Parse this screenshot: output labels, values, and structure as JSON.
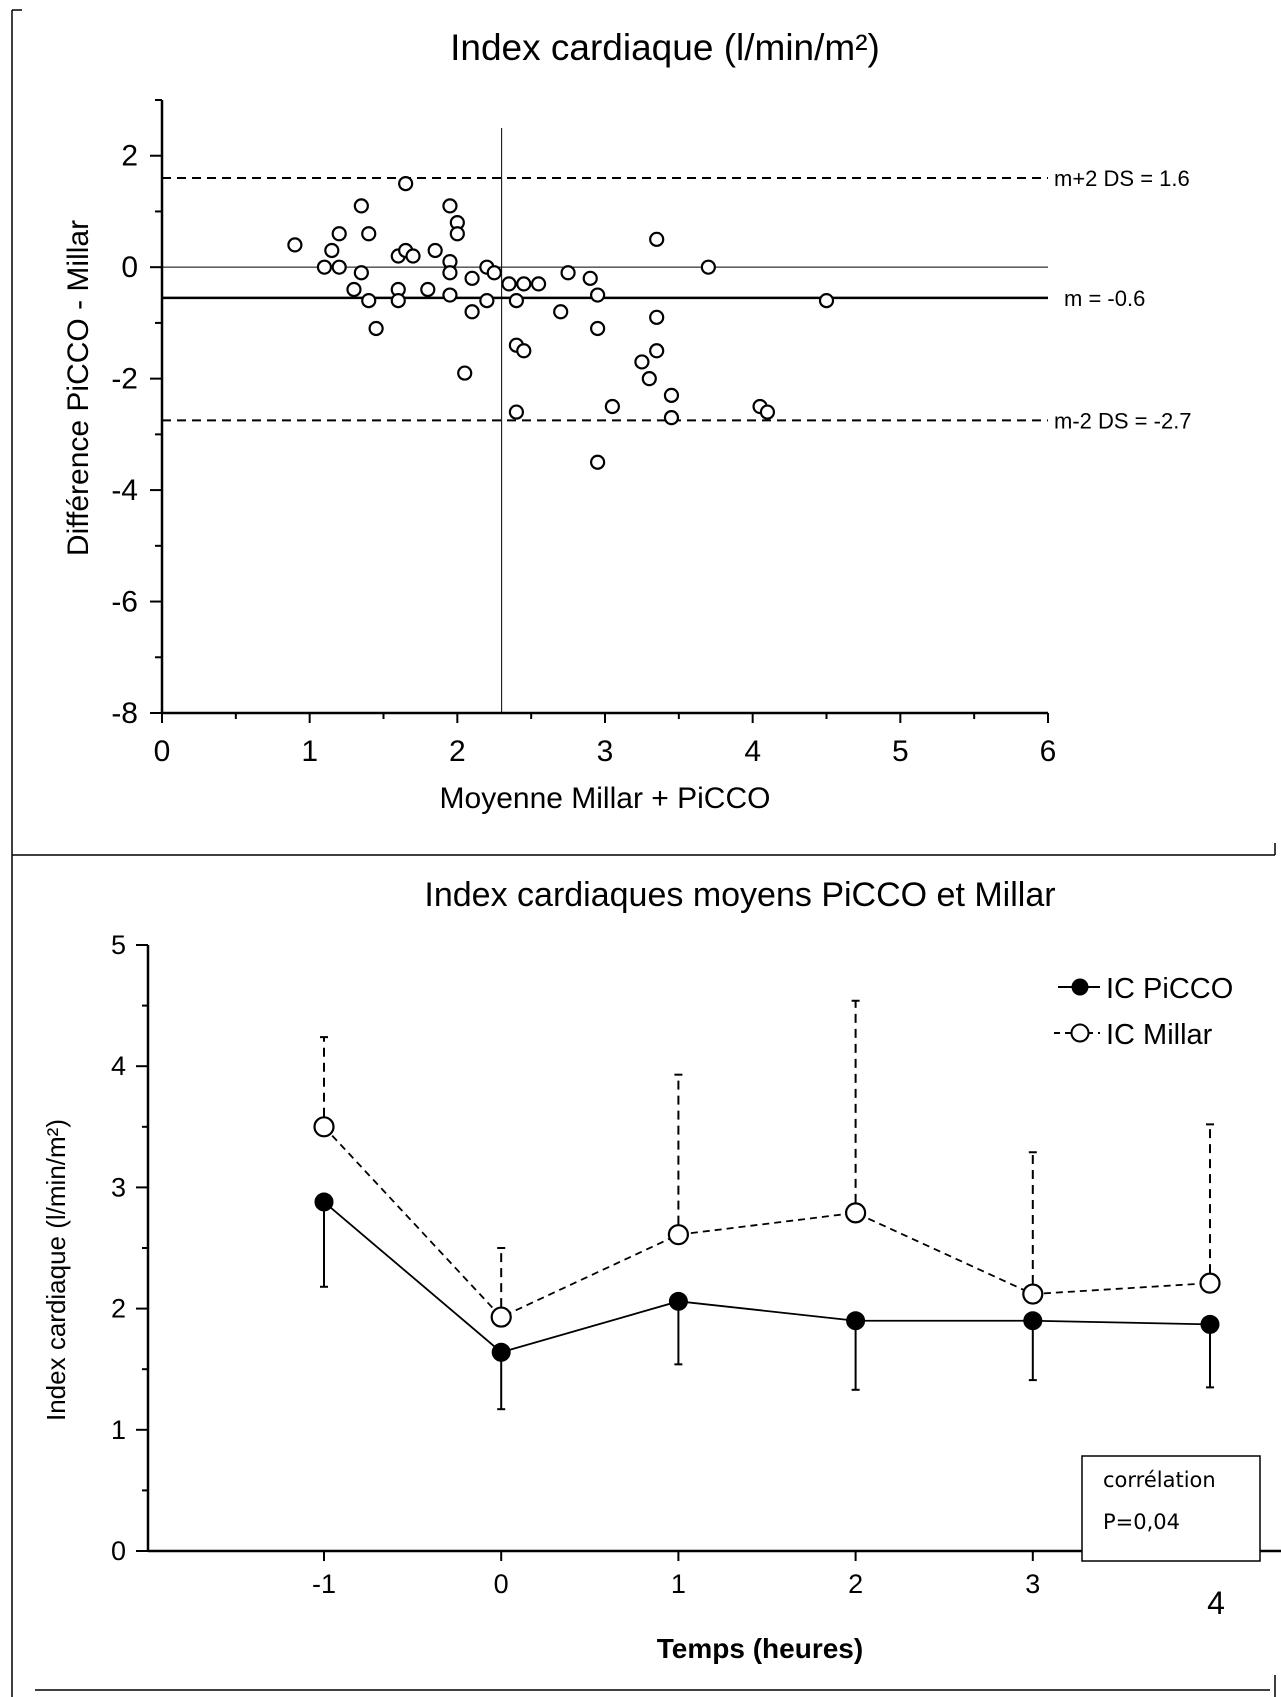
{
  "chart_data": [
    {
      "type": "scatter",
      "title": "Index cardiaque (l/min/m²)",
      "xlabel": "Moyenne Millar + PiCCO",
      "ylabel": "Différence PiCCO - Millar",
      "xlim": [
        0,
        6
      ],
      "ylim": [
        -8,
        3
      ],
      "x_ticks": [
        "0",
        "1",
        "2",
        "3",
        "4",
        "5",
        "6"
      ],
      "y_ticks": [
        "2",
        "0",
        "-2",
        "-4",
        "-6",
        "-8"
      ],
      "reference_lines": [
        {
          "label": "m+2 DS = 1.6",
          "y": 1.6,
          "style": "dashed"
        },
        {
          "label": "m = -0.6",
          "y": -0.55,
          "style": "solid"
        },
        {
          "label": "m-2 DS = -2.7",
          "y": -2.75,
          "style": "dashed"
        }
      ],
      "vertical_line_x": 2.3,
      "zero_line_y": 0,
      "points": [
        [
          0.9,
          0.4
        ],
        [
          1.1,
          0.0
        ],
        [
          1.15,
          0.3
        ],
        [
          1.2,
          0.6
        ],
        [
          1.2,
          0.0
        ],
        [
          1.3,
          -0.4
        ],
        [
          1.35,
          1.1
        ],
        [
          1.35,
          -0.1
        ],
        [
          1.4,
          0.6
        ],
        [
          1.4,
          -0.6
        ],
        [
          1.45,
          -1.1
        ],
        [
          1.6,
          0.2
        ],
        [
          1.6,
          -0.4
        ],
        [
          1.6,
          -0.6
        ],
        [
          1.65,
          1.5
        ],
        [
          1.65,
          0.3
        ],
        [
          1.7,
          0.2
        ],
        [
          1.8,
          -0.4
        ],
        [
          1.85,
          0.3
        ],
        [
          1.95,
          1.1
        ],
        [
          1.95,
          0.1
        ],
        [
          1.95,
          -0.1
        ],
        [
          1.95,
          -0.5
        ],
        [
          2.0,
          0.8
        ],
        [
          2.0,
          0.6
        ],
        [
          2.05,
          -1.9
        ],
        [
          2.1,
          -0.2
        ],
        [
          2.1,
          -0.8
        ],
        [
          2.2,
          0.0
        ],
        [
          2.2,
          -0.6
        ],
        [
          2.25,
          -0.1
        ],
        [
          2.35,
          -0.3
        ],
        [
          2.4,
          -0.6
        ],
        [
          2.4,
          -1.4
        ],
        [
          2.4,
          -2.6
        ],
        [
          2.45,
          -0.3
        ],
        [
          2.45,
          -1.5
        ],
        [
          2.55,
          -0.3
        ],
        [
          2.7,
          -0.8
        ],
        [
          2.75,
          -0.1
        ],
        [
          2.9,
          -0.2
        ],
        [
          2.95,
          -0.5
        ],
        [
          2.95,
          -1.1
        ],
        [
          2.95,
          -3.5
        ],
        [
          3.05,
          -2.5
        ],
        [
          3.25,
          -1.7
        ],
        [
          3.3,
          -2.0
        ],
        [
          3.35,
          0.5
        ],
        [
          3.35,
          -0.9
        ],
        [
          3.35,
          -1.5
        ],
        [
          3.45,
          -2.3
        ],
        [
          3.45,
          -2.7
        ],
        [
          3.7,
          0.0
        ],
        [
          4.05,
          -2.5
        ],
        [
          4.1,
          -2.6
        ],
        [
          4.5,
          -0.6
        ]
      ]
    },
    {
      "type": "line",
      "title": "Index cardiaques moyens PiCCO et Millar",
      "xlabel": "Temps (heures)",
      "ylabel": "Index cardiaque (l/min/m²)",
      "ylim": [
        0,
        5
      ],
      "categories": [
        "-1",
        "0",
        "1",
        "2",
        "3",
        "4"
      ],
      "y_ticks": [
        "0",
        "1",
        "2",
        "3",
        "4",
        "5"
      ],
      "legend_position": "top-right",
      "series": [
        {
          "name": "IC PiCCO",
          "marker": "filled-circle",
          "line": "solid",
          "values": [
            2.88,
            1.64,
            2.06,
            1.9,
            1.9,
            1.87
          ],
          "error_lower": [
            2.18,
            1.17,
            1.54,
            1.33,
            1.41,
            1.35
          ]
        },
        {
          "name": "IC Millar",
          "marker": "open-circle",
          "line": "dashed",
          "values": [
            3.5,
            1.93,
            2.61,
            2.79,
            2.12,
            2.21
          ],
          "error_upper": [
            4.24,
            2.5,
            3.93,
            4.54,
            3.29,
            3.52
          ]
        }
      ],
      "annotation": {
        "line1": "corrélation",
        "line2": "P=0,04"
      }
    }
  ]
}
